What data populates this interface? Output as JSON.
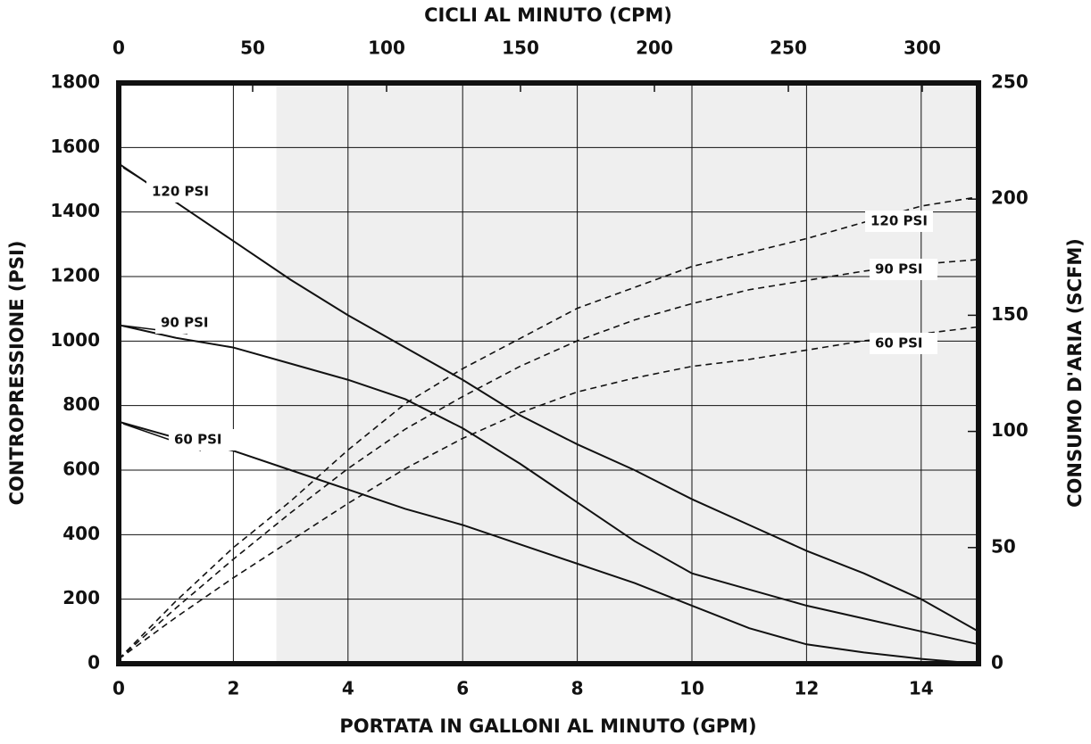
{
  "chart_data": {
    "type": "line",
    "x_label": "PORTATA IN GALLONI AL MINUTO (GPM)",
    "x2_label": "CICLI AL MINUTO (CPM)",
    "y_label": "CONTROPRESSIONE  (PSI)",
    "y2_label": "CONSUMO D'ARIA (SCFM)",
    "x": [
      0,
      1,
      2,
      3,
      4,
      5,
      6,
      7,
      8,
      9,
      10,
      11,
      12,
      13,
      14,
      15
    ],
    "xlim": [
      0,
      15
    ],
    "xticks": [
      0,
      2,
      4,
      6,
      8,
      10,
      12,
      14
    ],
    "x2lim": [
      0,
      321
    ],
    "x2ticks": [
      0,
      50,
      100,
      150,
      200,
      250,
      300
    ],
    "ylim": [
      0,
      1800
    ],
    "yticks": [
      0,
      200,
      400,
      600,
      800,
      1000,
      1200,
      1400,
      1600,
      1800
    ],
    "y2lim": [
      0,
      250
    ],
    "y2ticks": [
      0,
      50,
      100,
      150,
      200,
      250
    ],
    "shaded_xrange": [
      2.75,
      15
    ],
    "shade_color": "#efefef",
    "grid": true,
    "series": [
      {
        "name": "120 PSI",
        "color": "#111111",
        "dash": false,
        "values": [
          1550,
          1430,
          1310,
          1190,
          1080,
          980,
          880,
          770,
          680,
          600,
          510,
          430,
          350,
          280,
          200,
          100
        ]
      },
      {
        "name": "90 PSI",
        "color": "#111111",
        "dash": false,
        "values": [
          1050,
          1010,
          980,
          930,
          880,
          820,
          730,
          620,
          500,
          380,
          280,
          230,
          180,
          140,
          100,
          60
        ]
      },
      {
        "name": "60 PSI",
        "color": "#111111",
        "dash": false,
        "values": [
          750,
          700,
          660,
          600,
          540,
          480,
          430,
          370,
          310,
          250,
          180,
          110,
          60,
          35,
          15,
          0
        ]
      },
      {
        "name": "120 PSI",
        "color": "#111111",
        "dash": true,
        "axis": "y2",
        "values": [
          2,
          27,
          50,
          70,
          92,
          112,
          127,
          140,
          153,
          162,
          171,
          177,
          183,
          190,
          197,
          201
        ]
      },
      {
        "name": "90 PSI",
        "color": "#111111",
        "dash": true,
        "axis": "y2",
        "values": [
          2,
          24,
          45,
          65,
          84,
          101,
          115,
          128,
          139,
          148,
          155,
          161,
          165,
          169,
          172,
          174
        ]
      },
      {
        "name": "60 PSI",
        "color": "#111111",
        "dash": true,
        "axis": "y2",
        "values": [
          2,
          20,
          37,
          53,
          69,
          84,
          97,
          108,
          117,
          123,
          128,
          131,
          135,
          139,
          142,
          145
        ]
      }
    ]
  }
}
